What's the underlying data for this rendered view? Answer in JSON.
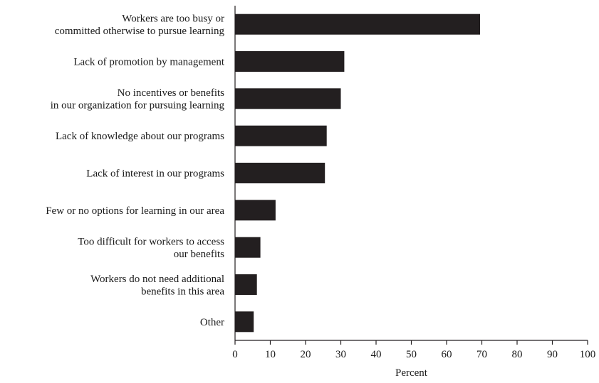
{
  "chart_data": {
    "type": "bar",
    "orientation": "horizontal",
    "title": "",
    "xlabel": "Percent",
    "ylabel": "",
    "xlim": [
      0,
      100
    ],
    "xticks": [
      0,
      10,
      20,
      30,
      40,
      50,
      60,
      70,
      80,
      90,
      100
    ],
    "grid": false,
    "bar_color": "#231f20",
    "categories": [
      [
        "Workers are too busy or",
        "committed otherwise to pursue learning"
      ],
      [
        "Lack of promotion by management"
      ],
      [
        "No incentives or benefits",
        "in our organization for pursuing learning"
      ],
      [
        "Lack of knowledge about our programs"
      ],
      [
        "Lack of interest in our programs"
      ],
      [
        "Few or no options for learning in our area"
      ],
      [
        "Too difficult for workers to access",
        "our benefits"
      ],
      [
        "Workers do not need additional",
        "benefits in this area"
      ],
      [
        "Other"
      ]
    ],
    "values": [
      69.5,
      31,
      30,
      26,
      25.5,
      11.5,
      7.2,
      6.2,
      5.3
    ]
  }
}
